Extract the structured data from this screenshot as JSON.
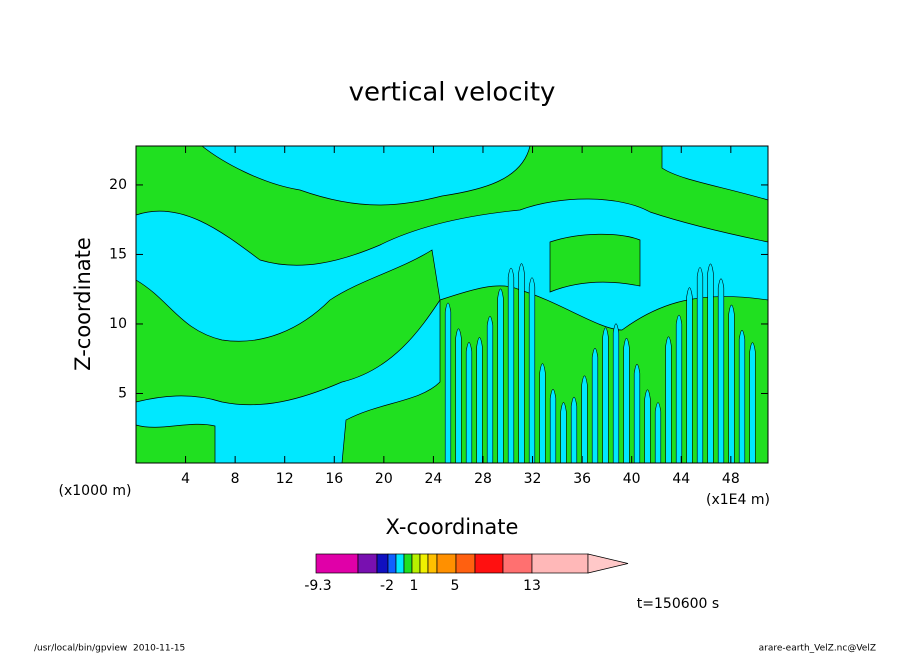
{
  "chart_data": {
    "type": "contour",
    "title": "vertical velocity",
    "x_label": "X-coordinate",
    "y_label": "Z-coordinate",
    "x_unit_left": "(x1000 m)",
    "x_unit_right": "(x1E4 m)",
    "xlim": [
      0,
      51
    ],
    "xticks": [
      4,
      8,
      12,
      16,
      20,
      24,
      28,
      32,
      36,
      40,
      44,
      48
    ],
    "ylim": [
      0,
      22.8
    ],
    "yticks": [
      5,
      10,
      15,
      20
    ],
    "colorbar": {
      "colors": [
        "#e000a8",
        "#7810b0",
        "#1010c0",
        "#1060ff",
        "#00e8ff",
        "#20e020",
        "#b8f000",
        "#f0f000",
        "#ffc000",
        "#ff9000",
        "#ff6010",
        "#ff1010",
        "#ff7070",
        "#ffb8b8",
        "#ffc8c8"
      ],
      "labels": [
        -9.3,
        -2,
        1,
        5,
        13
      ]
    },
    "time_label": "t=150600 s",
    "footer_left": "/usr/local/bin/gpview  2010-11-15",
    "footer_right": "arare-earth_VelZ.nc@VelZ"
  }
}
